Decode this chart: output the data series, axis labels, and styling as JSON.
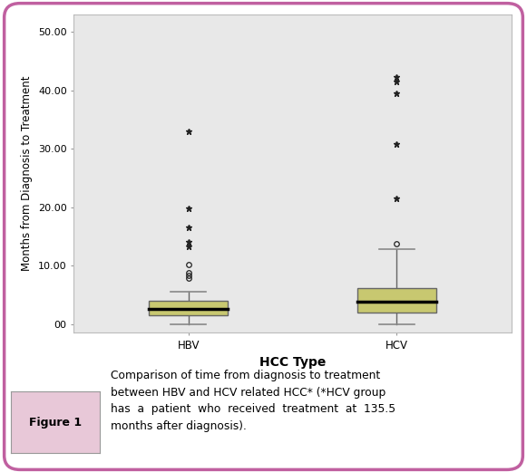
{
  "categories": [
    "HBV",
    "HCV"
  ],
  "xlabel": "HCC Type",
  "ylabel": "Months from Diagnosis to Treatment",
  "ylim": [
    -1.5,
    53
  ],
  "yticks": [
    0,
    10,
    20,
    30,
    40,
    50
  ],
  "ytick_labels": [
    "00",
    "10.00",
    "20.00",
    "30.00",
    "40.00",
    "50.00"
  ],
  "box_color": "#c8c870",
  "box_edge_color": "#666666",
  "median_color": "#000000",
  "whisker_color": "#666666",
  "cap_color": "#888888",
  "flier_color": "#222222",
  "plot_background": "#e8e8e8",
  "HBV": {
    "q1": 1.5,
    "median": 2.5,
    "q3": 4.0,
    "whisker_low": 0.0,
    "whisker_high": 5.5,
    "outliers_circle": [
      7.8,
      8.3,
      8.8,
      10.2
    ],
    "outliers_star": [
      13.3,
      14.0,
      16.5,
      19.8,
      33.0
    ]
  },
  "HCV": {
    "q1": 2.0,
    "median": 3.8,
    "q3": 6.2,
    "whisker_low": 0.0,
    "whisker_high": 12.8,
    "outliers_circle": [
      13.8
    ],
    "outliers_star": [
      21.5,
      30.8,
      39.5,
      41.5,
      42.2
    ]
  },
  "figure_caption_label": "Figure 1",
  "figure_caption_text": "Comparison of time from diagnosis to treatment\nbetween HBV and HCV related HCC* (*HCV group\nhas  a  patient  who  received  treatment  at  135.5\nmonths after diagnosis).",
  "border_color": "#c060a0",
  "figure1_bg": "#e8c8d8"
}
